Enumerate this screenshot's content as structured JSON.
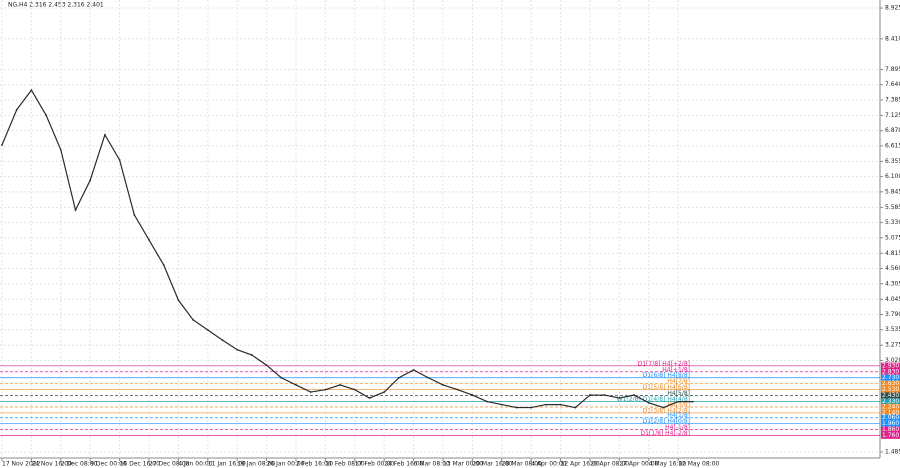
{
  "chart_data": {
    "type": "line",
    "title": "NG,H4  2.316 2.453 2.316 2.401",
    "color": "#2b2b2b",
    "grid": true,
    "ylim": [
      1.385,
      9.06
    ],
    "yticks": [
      8.925,
      {
        "value": 8.41,
        "label": "8.410"
      },
      7.895,
      {
        "value": 7.64,
        "label": "7.640"
      },
      7.385,
      7.125,
      {
        "value": 6.87,
        "label": "6.870"
      },
      6.615,
      6.355,
      {
        "value": 6.1,
        "label": "6.100"
      },
      5.845,
      5.585,
      {
        "value": 5.33,
        "label": "5.330"
      },
      5.075,
      4.815,
      {
        "value": 4.56,
        "label": "4.560"
      },
      4.305,
      4.045,
      {
        "value": 3.79,
        "label": "3.790"
      },
      3.535,
      3.275,
      {
        "value": 3.02,
        "label": "3.020"
      },
      1.485
    ],
    "categories": [
      "17 Nov 2022",
      null,
      "24 Nov 16:00",
      null,
      "2 Dec 08:00",
      null,
      "9 Dec 00:00",
      null,
      "16 Dec 16:00",
      null,
      "27 Dec 08:00",
      null,
      "4 Jan 00:00",
      null,
      "11 Jan 16:00",
      null,
      "19 Jan 08:00",
      null,
      "26 Jan 00:00",
      null,
      "2 Feb 16:00",
      null,
      "10 Feb 08:00",
      null,
      "17 Feb 00:00",
      null,
      "24 Feb 16:00",
      null,
      "6 Mar 08:00",
      null,
      "13 Mar 00:00",
      null,
      "20 Mar 16:00",
      null,
      "28 Mar 08:00",
      null,
      "4 Apr 00:00",
      null,
      "12 Apr 16:00",
      null,
      "20 Apr 08:00",
      null,
      "27 Apr 00:00",
      null,
      "4 May 16:00",
      null,
      "12 May 08:00",
      null
    ],
    "values": [
      6.63,
      7.22,
      7.55,
      7.13,
      6.55,
      5.54,
      6.04,
      6.8,
      6.38,
      5.46,
      5.04,
      4.62,
      4.03,
      3.7,
      3.53,
      3.36,
      3.2,
      3.11,
      2.94,
      2.73,
      2.61,
      2.49,
      2.53,
      2.61,
      2.53,
      2.39,
      2.49,
      2.73,
      2.86,
      2.73,
      2.61,
      2.53,
      2.44,
      2.33,
      2.28,
      2.23,
      2.23,
      2.28,
      2.28,
      2.23,
      2.44,
      2.44,
      2.39,
      2.44,
      2.31,
      2.23,
      2.33,
      2.33
    ],
    "levels": [
      {
        "name": "D1[7/8] H4[+2/8]",
        "value": 2.93,
        "label": "2.930",
        "color": "#e0218a"
      },
      {
        "name": "H4[+1/8]",
        "value": 2.83,
        "label": "2.830",
        "color": "#e0218a"
      },
      {
        "name": "D1[6/8] H4[8/8]",
        "value": 2.73,
        "label": "2.730",
        "color": "#1e90ff"
      },
      {
        "name": "H4[7/8]",
        "value": 2.63,
        "label": "2.630",
        "color": "#f08a24"
      },
      {
        "name": "D1[5/8] H4[6/8]",
        "value": 2.53,
        "label": "2.530",
        "color": "#f08a24"
      },
      {
        "name": "H4[5/8]",
        "value": 2.43,
        "label": "2.430",
        "color": "#2f4f4f"
      },
      {
        "name": "W1[2/8] D1[4/8] H4[4/8]",
        "value": 2.33,
        "label": "2.330",
        "color": "#20a0b0"
      },
      {
        "name": "H4[3/8]",
        "value": 2.24,
        "label": "2.240",
        "color": "#f08a24"
      },
      {
        "name": "D1[3/8] H4[2/8]",
        "value": 2.14,
        "label": "2.140",
        "color": "#f08a24"
      },
      {
        "name": "H4[1/8]",
        "value": 2.06,
        "label": "2.060",
        "color": "#1e90ff"
      },
      {
        "name": "D1[2/8] H4[0/8]",
        "value": 1.96,
        "label": "1.960",
        "color": "#1e90ff"
      },
      {
        "name": "H4[-1/8]",
        "value": 1.86,
        "label": "1.860",
        "color": "#e0218a"
      },
      {
        "name": "D1[1/8] H4[-2/8]",
        "value": 1.76,
        "label": "1.760",
        "color": "#e0218a"
      }
    ]
  }
}
